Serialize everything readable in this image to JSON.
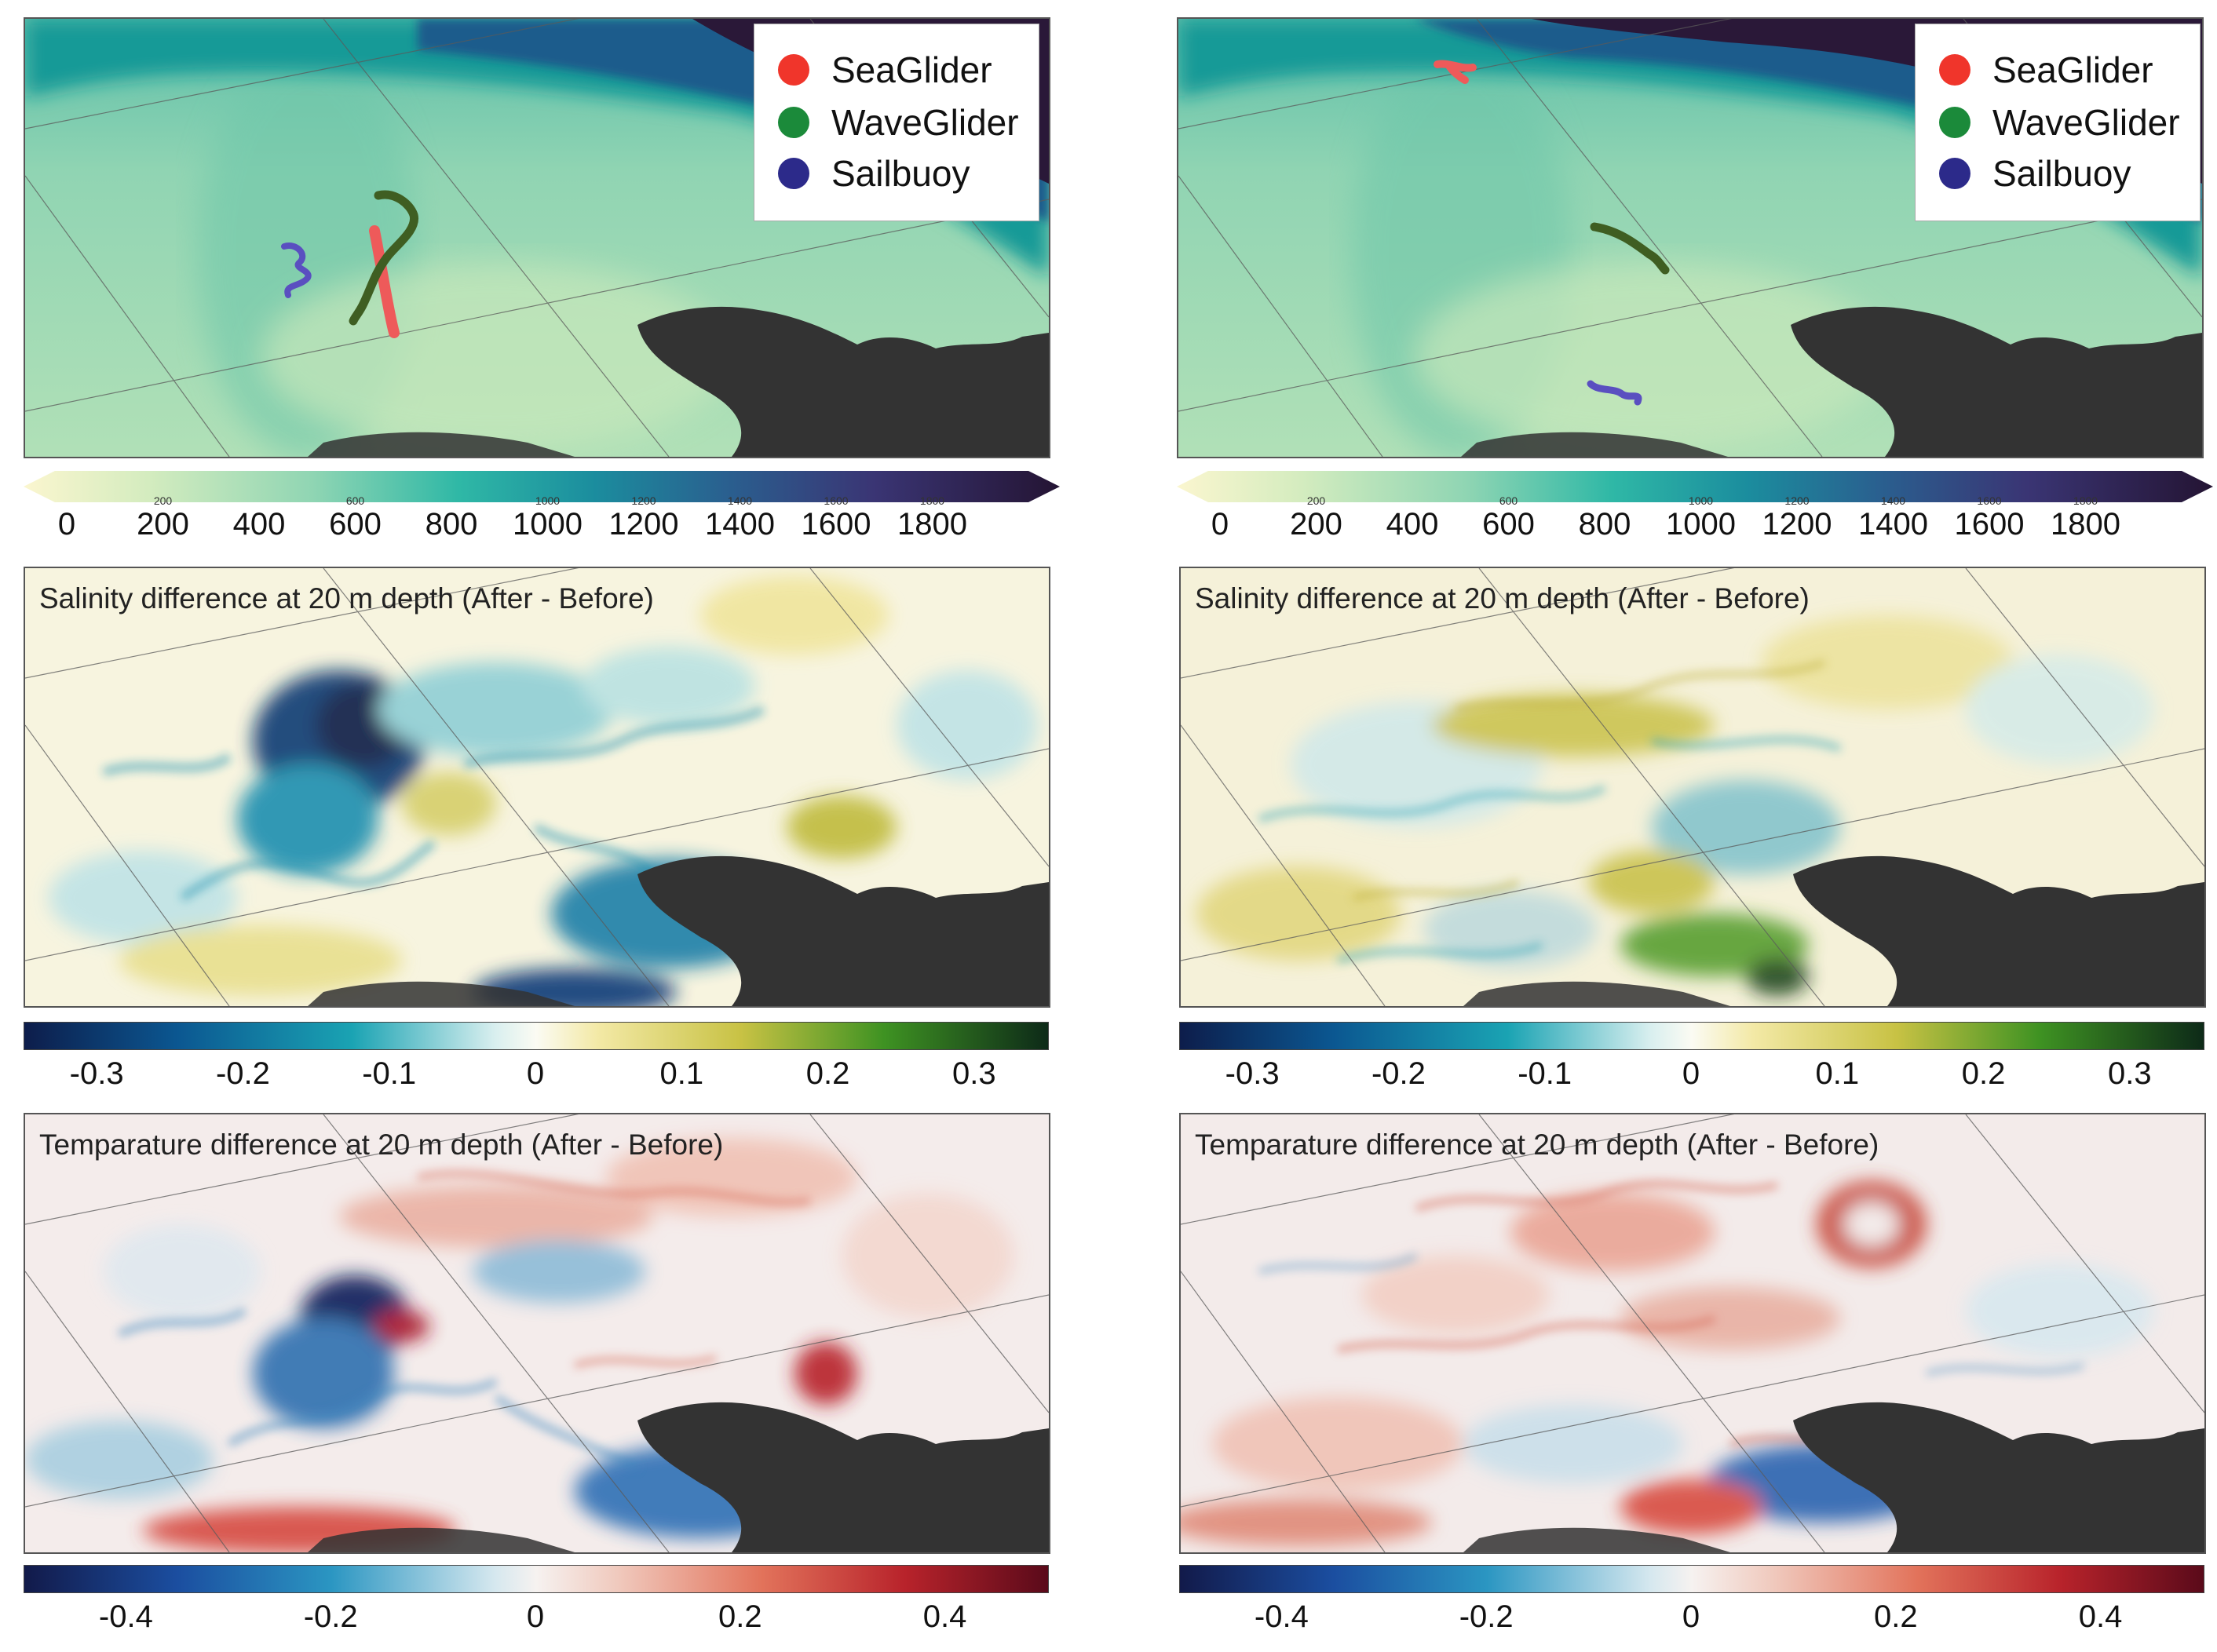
{
  "legend": {
    "items": [
      {
        "label": "SeaGlider",
        "color": "#f0352b"
      },
      {
        "label": "WaveGlider",
        "color": "#1b8a3a"
      },
      {
        "label": "Sailbuoy",
        "color": "#2c2a8a"
      }
    ]
  },
  "track_colors": {
    "seaglider": "#ee5a5a",
    "waveglider": "#3f5e22",
    "sailbuoy": "#5a4fc0"
  },
  "bathymetry_colorbar": {
    "ticks": [
      "0",
      "200",
      "400",
      "600",
      "800",
      "1000",
      "1200",
      "1400",
      "1600",
      "1800"
    ],
    "ticks_faint": [
      "200",
      "600",
      "1000",
      "1200",
      "1400",
      "1600",
      "1800"
    ],
    "range": [
      0,
      2000
    ]
  },
  "salinity": {
    "title": "Salinity difference at 20 m depth (After - Before)",
    "ticks": [
      "-0.3",
      "-0.2",
      "-0.1",
      "0",
      "0.1",
      "0.2",
      "0.3"
    ],
    "range": [
      -0.35,
      0.35
    ]
  },
  "temperature": {
    "title": "Temparature difference at 20 m depth (After - Before)",
    "ticks": [
      "-0.4",
      "-0.2",
      "0",
      "0.2",
      "0.4"
    ],
    "range": [
      -0.5,
      0.5
    ]
  },
  "colors": {
    "land": "#333333",
    "deep_water": "#2a1838",
    "bathy_base": "#a6dbb3"
  }
}
